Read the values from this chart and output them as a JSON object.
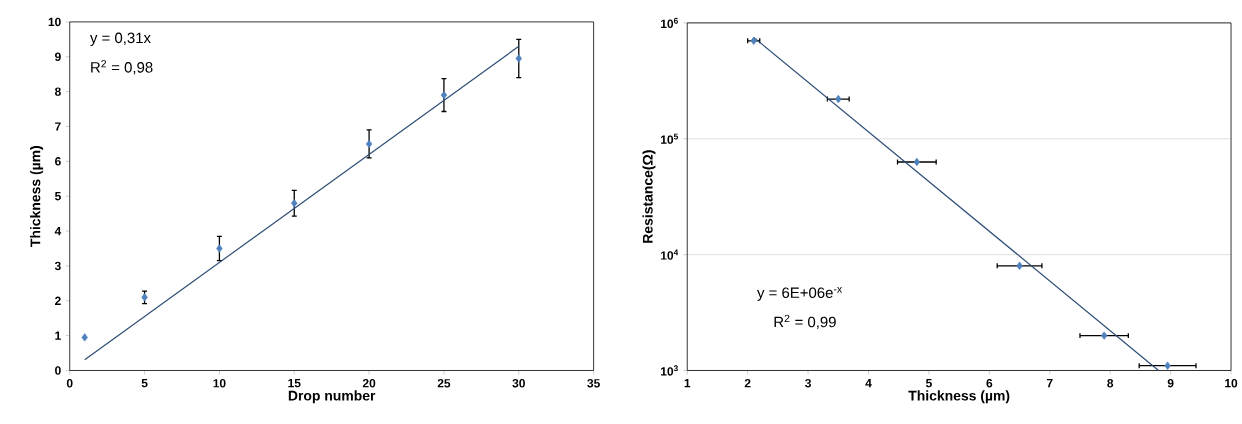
{
  "chart_data": [
    {
      "type": "scatter",
      "xlabel": "Drop number",
      "ylabel": "Thickness (µm)",
      "grid": false,
      "xlim": [
        0,
        35
      ],
      "xticks": [
        0,
        5,
        10,
        15,
        20,
        25,
        30,
        35
      ],
      "ylim": [
        0,
        10
      ],
      "yticks": [
        0,
        1,
        2,
        3,
        4,
        5,
        6,
        7,
        8,
        9,
        10
      ],
      "annotations": [
        "y = 0,31x",
        "R$^{2}$ = 0,98"
      ],
      "series": [
        {
          "marker": "diamond",
          "color": "#4f81bd",
          "x": [
            1,
            5,
            10,
            15,
            20,
            25,
            30
          ],
          "values": [
            0.95,
            2.1,
            3.5,
            4.8,
            6.5,
            7.9,
            8.95
          ],
          "errors": [
            null,
            0.18,
            0.35,
            0.37,
            0.4,
            0.47,
            0.55
          ]
        },
        {
          "type": "line",
          "marker": "none",
          "color": "#2c4d75",
          "x": [
            1,
            30
          ],
          "values": [
            0.31,
            9.3
          ]
        }
      ]
    },
    {
      "type": "scatter",
      "xlabel": "Thickness (µm)",
      "ylabel": "Resistance(Ω)",
      "grid": "y",
      "log": "y",
      "xlim": [
        1,
        10
      ],
      "xticks": [
        1,
        2,
        3,
        4,
        5,
        6,
        7,
        8,
        9,
        10
      ],
      "ylim": [
        1000,
        1000000
      ],
      "yticks": [
        {
          "value": 1000,
          "label": "10$^{3}$"
        },
        {
          "value": 10000,
          "label": "10$^{4}$"
        },
        {
          "value": 100000,
          "label": "10$^{5}$"
        },
        {
          "value": 1000000,
          "label": "10$^{6}$"
        }
      ],
      "annotations": [
        "y = 6E+06e$^{-x}$",
        "R$^{2}$ = 0,99"
      ],
      "series": [
        {
          "marker": "diamond",
          "color": "#4f81bd",
          "x": [
            2.1,
            3.5,
            4.8,
            6.5,
            7.9,
            8.95
          ],
          "values": [
            700000,
            220000,
            63000,
            8000,
            2000,
            1100
          ],
          "xerrors": [
            0.1,
            0.18,
            0.32,
            0.37,
            0.4,
            0.47
          ]
        },
        {
          "type": "line",
          "marker": "none",
          "color": "#2c4d75",
          "x": [
            2.1,
            8.8
          ],
          "values": [
            750000,
            1000
          ]
        }
      ]
    }
  ]
}
